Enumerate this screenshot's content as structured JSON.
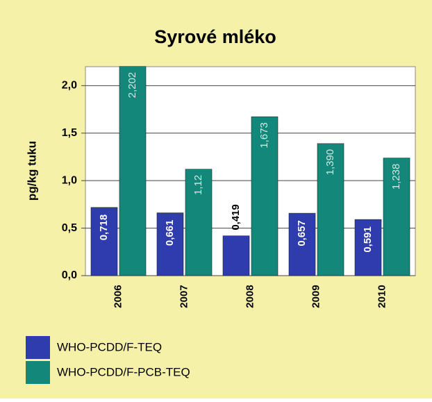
{
  "chart_data": {
    "type": "bar",
    "title": "Syrové mléko",
    "y_label": "pg/kg tuku",
    "categories": [
      "2006",
      "2007",
      "2008",
      "2009",
      "2010"
    ],
    "series": [
      {
        "name": "WHO-PCDD/F-TEQ",
        "color": "#2e3cae",
        "values": [
          0.718,
          0.661,
          0.419,
          0.657,
          0.591
        ],
        "value_labels": [
          "0,718",
          "0,661",
          "0,419",
          "0,657",
          "0,591"
        ]
      },
      {
        "name": "WHO-PCDD/F-PCB-TEQ",
        "color": "#13877a",
        "values": [
          2.202,
          1.12,
          1.673,
          1.39,
          1.238
        ],
        "value_labels": [
          "2,202",
          "1,12",
          "1,673",
          "1,390",
          "1,238"
        ]
      }
    ],
    "ylim": [
      0,
      2.2
    ],
    "yticks": [
      {
        "value": 0,
        "label": "0,0"
      },
      {
        "value": 0.5,
        "label": "0,5"
      },
      {
        "value": 1,
        "label": "1,0"
      },
      {
        "value": 1.5,
        "label": "1,5"
      },
      {
        "value": 2,
        "label": "2,0"
      }
    ],
    "grid": true
  }
}
